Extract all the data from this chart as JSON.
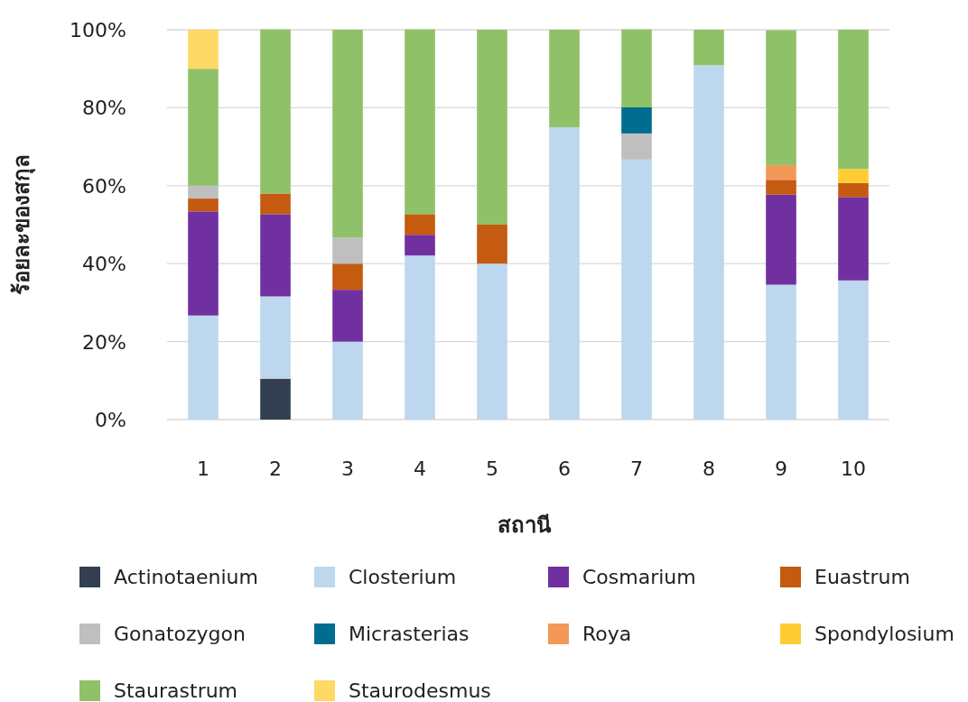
{
  "chart_data": {
    "type": "bar",
    "stacked": true,
    "xlabel": "สถานี",
    "ylabel": "ร้อยละของสกุล",
    "categories": [
      "1",
      "2",
      "3",
      "4",
      "5",
      "6",
      "7",
      "8",
      "9",
      "10"
    ],
    "ylim": [
      0,
      100
    ],
    "yticks": [
      {
        "value": 0,
        "label": "0%"
      },
      {
        "value": 20,
        "label": "20%"
      },
      {
        "value": 40,
        "label": "40%"
      },
      {
        "value": 60,
        "label": "60%"
      },
      {
        "value": 80,
        "label": "80%"
      },
      {
        "value": 100,
        "label": "100%"
      }
    ],
    "grid": "y",
    "legend": "bottom",
    "series": [
      {
        "name": "Actinotaenium",
        "color": "#333f50",
        "values": [
          null,
          10.5,
          null,
          null,
          null,
          null,
          null,
          null,
          null,
          null
        ]
      },
      {
        "name": "Closterium",
        "color": "#bdd7ee",
        "values": [
          26.7,
          21.1,
          20,
          42.1,
          40,
          75,
          66.7,
          90.9,
          34.6,
          35.7
        ]
      },
      {
        "name": "Cosmarium",
        "color": "#7030a0",
        "values": [
          26.7,
          21.1,
          13.3,
          5.3,
          null,
          null,
          null,
          null,
          23.1,
          21.4
        ]
      },
      {
        "name": "Euastrum",
        "color": "#c55a11",
        "values": [
          3.3,
          5.3,
          6.7,
          5.3,
          10,
          null,
          null,
          null,
          3.8,
          3.6
        ]
      },
      {
        "name": "Gonatozygon",
        "color": "#bfbfbf",
        "values": [
          3.3,
          null,
          6.7,
          null,
          null,
          null,
          6.7,
          null,
          null,
          null
        ]
      },
      {
        "name": "Micrasterias",
        "color": "#006c8f",
        "values": [
          null,
          null,
          null,
          null,
          null,
          null,
          6.7,
          null,
          null,
          null
        ]
      },
      {
        "name": "Roya",
        "color": "#f4985a",
        "values": [
          null,
          null,
          null,
          null,
          null,
          null,
          null,
          null,
          3.8,
          null
        ]
      },
      {
        "name": "Spondylosium",
        "color": "#ffcc33",
        "values": [
          null,
          null,
          null,
          null,
          null,
          null,
          null,
          null,
          null,
          3.6
        ]
      },
      {
        "name": "Staurastrum",
        "color": "#8fc268",
        "values": [
          30,
          42.1,
          53.3,
          47.4,
          50,
          25,
          20,
          9.1,
          34.6,
          35.7
        ]
      },
      {
        "name": "Staurodesmus",
        "color": "#ffd966",
        "values": [
          10,
          null,
          null,
          null,
          null,
          null,
          null,
          null,
          null,
          null
        ]
      }
    ]
  }
}
